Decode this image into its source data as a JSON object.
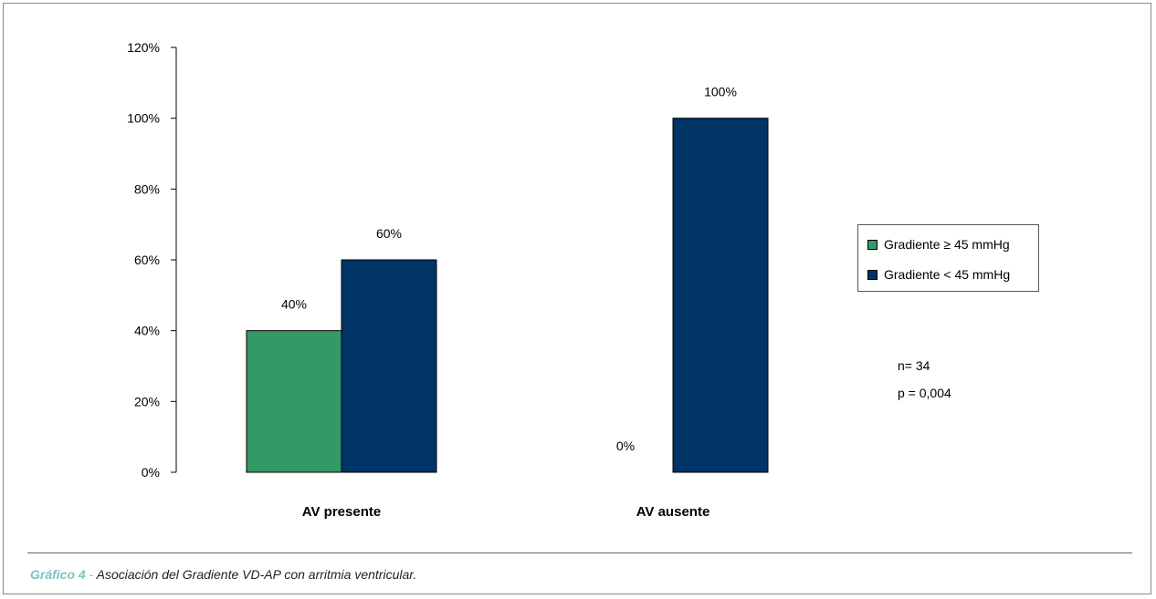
{
  "chart_data": {
    "type": "bar",
    "categories": [
      "AV presente",
      "AV ausente"
    ],
    "series": [
      {
        "name": "Gradiente ≥ 45 mmHg",
        "values": [
          40,
          0
        ],
        "labels": [
          "40%",
          "0%"
        ],
        "color": "#339966"
      },
      {
        "name": "Gradiente < 45 mmHg",
        "values": [
          60,
          100
        ],
        "labels": [
          "60%",
          "100%"
        ],
        "color": "#003366"
      }
    ],
    "yticks": [
      "0%",
      "20%",
      "40%",
      "60%",
      "80%",
      "100%",
      "120%"
    ],
    "ylim": [
      0,
      120
    ],
    "title": "",
    "xlabel": "",
    "ylabel": "",
    "legend_position": "right",
    "grid": false
  },
  "notes": {
    "n": "n= 34",
    "p": "p = 0,004"
  },
  "caption": {
    "label": "Gráfico 4",
    "separator": " - ",
    "text": "Asociación del Gradiente VD-AP con arritmia ventricular."
  }
}
